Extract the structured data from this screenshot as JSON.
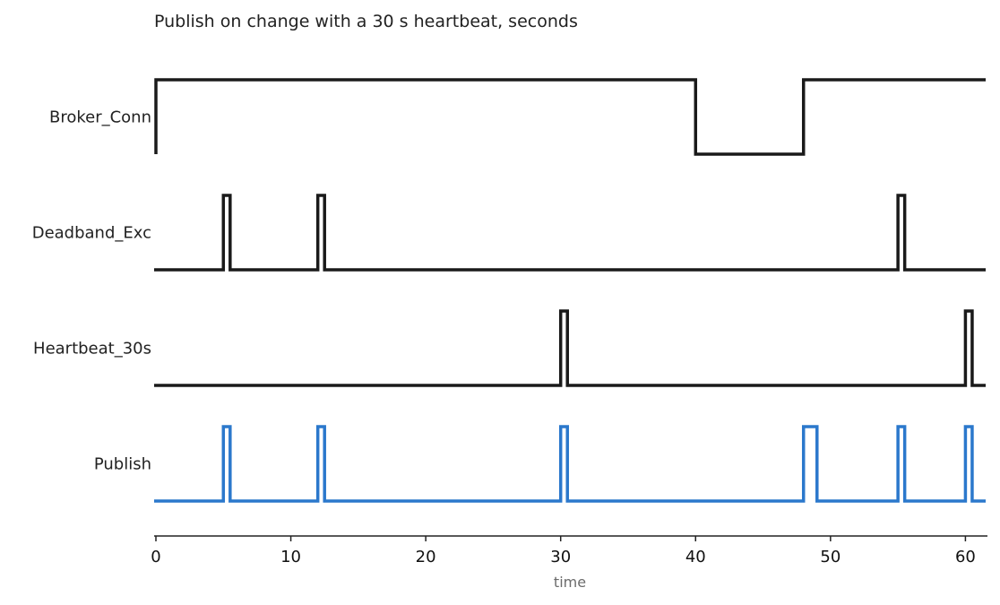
{
  "chart_data": {
    "type": "line",
    "subtype": "timing-diagram",
    "title": "Publish on change with a 30 s heartbeat, seconds",
    "xlabel": "time",
    "xlim": [
      0,
      61.5
    ],
    "xticks": [
      0,
      10,
      20,
      30,
      40,
      50,
      60
    ],
    "grid": false,
    "legend": "none",
    "series": [
      {
        "name": "Broker_Conn",
        "color": "#1a1a1a",
        "transitions": [
          [
            0,
            1
          ],
          [
            40,
            0
          ],
          [
            48,
            1
          ]
        ]
      },
      {
        "name": "Deadband_Exc",
        "color": "#1a1a1a",
        "transitions": [
          [
            0,
            0
          ],
          [
            5,
            1
          ],
          [
            5.5,
            0
          ],
          [
            12,
            1
          ],
          [
            12.5,
            0
          ],
          [
            55,
            1
          ],
          [
            55.5,
            0
          ]
        ]
      },
      {
        "name": "Heartbeat_30s",
        "color": "#1a1a1a",
        "transitions": [
          [
            0,
            0
          ],
          [
            30,
            1
          ],
          [
            30.5,
            0
          ],
          [
            60,
            1
          ],
          [
            60.5,
            0
          ]
        ]
      },
      {
        "name": "Publish",
        "color": "#2b78cc",
        "transitions": [
          [
            0,
            0
          ],
          [
            5,
            1
          ],
          [
            5.5,
            0
          ],
          [
            12,
            1
          ],
          [
            12.5,
            0
          ],
          [
            30,
            1
          ],
          [
            30.5,
            0
          ],
          [
            48,
            1
          ],
          [
            49,
            0
          ],
          [
            55,
            1
          ],
          [
            55.5,
            0
          ],
          [
            60,
            1
          ],
          [
            60.5,
            0
          ]
        ]
      }
    ]
  }
}
